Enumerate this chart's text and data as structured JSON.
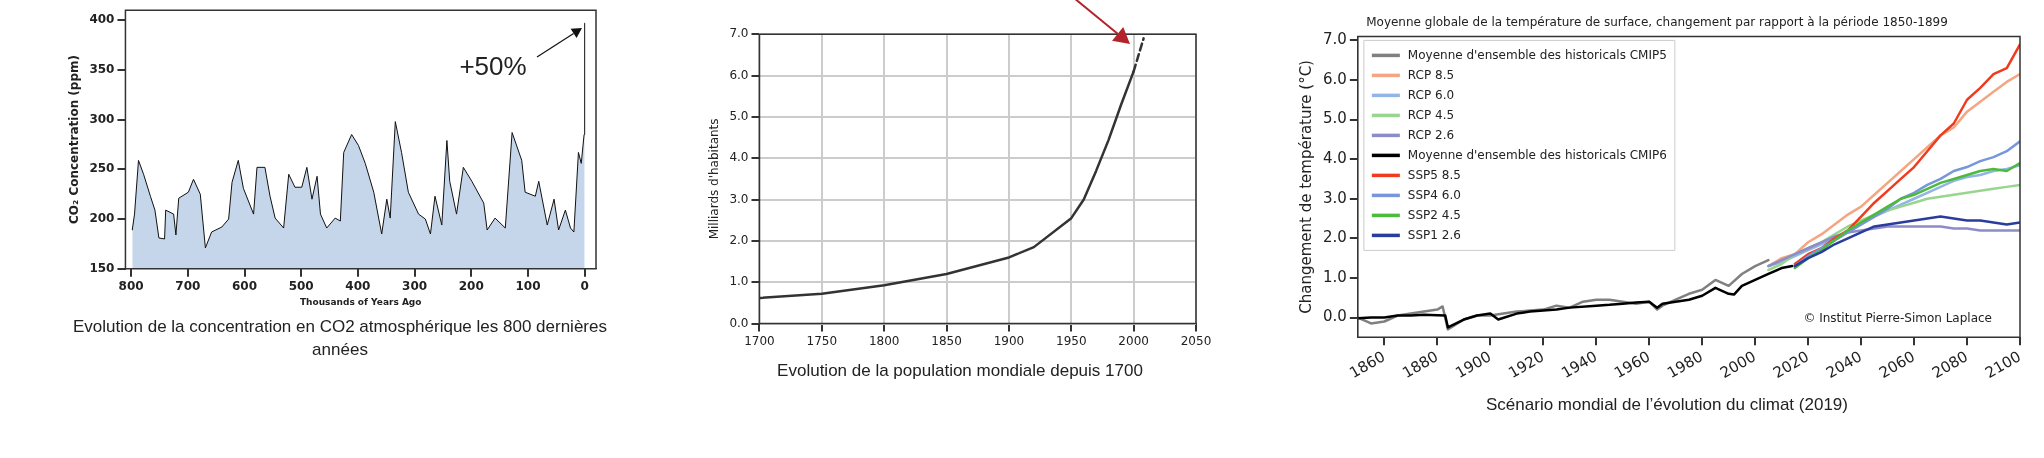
{
  "chart_data": [
    {
      "type": "area",
      "ylabel": "CO₂ Concentration (ppm)",
      "xlabel": "Thousands of Years Ago",
      "x": [
        798,
        794,
        787,
        778,
        766,
        758,
        751,
        741,
        739,
        725,
        721,
        716,
        699,
        690,
        678,
        669,
        658,
        640,
        628,
        622,
        611,
        602,
        584,
        578,
        564,
        555,
        546,
        531,
        522,
        511,
        499,
        490,
        481,
        472,
        466,
        455,
        440,
        431,
        425,
        411,
        399,
        387,
        372,
        358,
        349,
        343,
        334,
        323,
        311,
        293,
        281,
        272,
        264,
        252,
        243,
        238,
        226,
        214,
        199,
        178,
        172,
        158,
        140,
        128,
        111,
        105,
        87,
        81,
        66,
        54,
        46,
        34,
        25,
        19,
        11,
        6,
        1,
        0
      ],
      "values": [
        189,
        205,
        259,
        245,
        223,
        209,
        181,
        180,
        209,
        205,
        184,
        221,
        227,
        240,
        225,
        171,
        187,
        192,
        200,
        237,
        259,
        231,
        205,
        252,
        252,
        223,
        201,
        191,
        245,
        232,
        232,
        252,
        220,
        243,
        205,
        191,
        201,
        198,
        267,
        285,
        274,
        256,
        227,
        185,
        220,
        201,
        298,
        267,
        227,
        205,
        200,
        185,
        223,
        194,
        279,
        238,
        205,
        252,
        238,
        216,
        189,
        201,
        191,
        287,
        259,
        227,
        223,
        238,
        194,
        220,
        189,
        209,
        191,
        187,
        267,
        256,
        285,
        397
      ],
      "color": "#c5d6ea",
      "xlim": [
        810,
        -20
      ],
      "xticks": [
        800,
        700,
        600,
        500,
        400,
        300,
        200,
        100,
        0
      ],
      "ylim": [
        150,
        410
      ],
      "yticks": [
        150,
        200,
        250,
        300,
        350,
        400
      ],
      "annotations": [
        {
          "text": "+50%",
          "x": 0,
          "y": 397
        },
        "Evolution de la concentration en CO2 atmosphérique les 800 dernières années"
      ]
    },
    {
      "type": "line",
      "ylabel": "Milliards d'habitants",
      "series": [
        {
          "color": "#333333",
          "x": [
            1700,
            1750,
            1800,
            1850,
            1900,
            1920,
            1950,
            1960,
            1970,
            1980,
            1990,
            2000
          ],
          "values": [
            0.62,
            0.72,
            0.93,
            1.2,
            1.6,
            1.85,
            2.55,
            3.0,
            3.7,
            4.45,
            5.3,
            6.1
          ]
        },
        {
          "color": "#333333",
          "line_style": "dashed",
          "x": [
            2000,
            2008
          ],
          "values": [
            6.1,
            6.9
          ]
        }
      ],
      "xlim": [
        1700,
        2050
      ],
      "xticks": [
        1700,
        1750,
        1800,
        1850,
        1900,
        1950,
        2000,
        2050
      ],
      "ylim": [
        0,
        7
      ],
      "yticks": [
        {
          "value": 0,
          "label": "0.0"
        },
        {
          "value": 1,
          "label": "1.0"
        },
        {
          "value": 2,
          "label": "2.0"
        },
        {
          "value": 3,
          "label": "3.0"
        },
        {
          "value": 4,
          "label": "4.0"
        },
        {
          "value": 5,
          "label": "5.0"
        },
        {
          "value": 6,
          "label": "6.0"
        },
        {
          "value": 7,
          "label": "7.0"
        }
      ],
      "grid": true,
      "annotations": [
        "Evolution de la population mondiale depuis 1700"
      ]
    },
    {
      "type": "line",
      "title": "Moyenne globale de la température de surface, changement par rapport à la période 1850-1899",
      "ylabel": "Changement de température (°C)",
      "series": [
        {
          "name": "Moyenne d'ensemble des historicals CMIP5",
          "color": "#808080",
          "x": [
            1850,
            1855,
            1860,
            1865,
            1870,
            1875,
            1880,
            1882,
            1884,
            1890,
            1895,
            1900,
            1905,
            1910,
            1920,
            1925,
            1930,
            1935,
            1940,
            1945,
            1950,
            1955,
            1960,
            1963,
            1965,
            1970,
            1975,
            1980,
            1985,
            1990,
            1995,
            2000,
            2005
          ],
          "values": [
            0.0,
            -0.15,
            -0.1,
            0.05,
            0.1,
            0.15,
            0.2,
            0.28,
            -0.3,
            -0.05,
            0.05,
            0.05,
            0.1,
            0.15,
            0.2,
            0.3,
            0.25,
            0.4,
            0.45,
            0.45,
            0.4,
            0.35,
            0.4,
            0.2,
            0.3,
            0.45,
            0.6,
            0.7,
            0.95,
            0.8,
            1.1,
            1.3,
            1.45
          ]
        },
        {
          "name": "RCP 8.5",
          "color": "#f4a582",
          "x": [
            2005,
            2010,
            2015,
            2020,
            2025,
            2030,
            2035,
            2040,
            2045,
            2050,
            2055,
            2060,
            2065,
            2070,
            2075,
            2080,
            2085,
            2090,
            2095,
            2100
          ],
          "values": [
            1.3,
            1.5,
            1.6,
            1.9,
            2.1,
            2.35,
            2.6,
            2.8,
            3.1,
            3.4,
            3.7,
            4.0,
            4.3,
            4.6,
            4.8,
            5.2,
            5.45,
            5.7,
            5.95,
            6.15
          ]
        },
        {
          "name": "RCP 6.0",
          "color": "#92b4e6",
          "x": [
            2005,
            2010,
            2015,
            2020,
            2025,
            2030,
            2035,
            2040,
            2045,
            2050,
            2055,
            2060,
            2065,
            2070,
            2075,
            2080,
            2085,
            2090,
            2095,
            2100
          ],
          "values": [
            1.3,
            1.4,
            1.55,
            1.7,
            1.85,
            2.0,
            2.15,
            2.35,
            2.55,
            2.7,
            2.85,
            3.0,
            3.15,
            3.3,
            3.45,
            3.55,
            3.6,
            3.7,
            3.75,
            3.85
          ]
        },
        {
          "name": "RCP 4.5",
          "color": "#98d68f",
          "x": [
            2005,
            2010,
            2015,
            2020,
            2025,
            2030,
            2035,
            2040,
            2045,
            2050,
            2055,
            2060,
            2065,
            2070,
            2075,
            2080,
            2085,
            2090,
            2095,
            2100
          ],
          "values": [
            1.2,
            1.35,
            1.6,
            1.75,
            1.9,
            2.1,
            2.3,
            2.45,
            2.6,
            2.7,
            2.8,
            2.9,
            3.0,
            3.05,
            3.1,
            3.15,
            3.2,
            3.25,
            3.3,
            3.35
          ]
        },
        {
          "name": "RCP 2.6",
          "color": "#8c8cc8",
          "x": [
            2005,
            2010,
            2015,
            2020,
            2025,
            2030,
            2035,
            2040,
            2045,
            2050,
            2055,
            2060,
            2065,
            2070,
            2075,
            2080,
            2085,
            2090,
            2095,
            2100
          ],
          "values": [
            1.3,
            1.45,
            1.6,
            1.75,
            1.9,
            2.05,
            2.15,
            2.2,
            2.25,
            2.3,
            2.3,
            2.3,
            2.3,
            2.3,
            2.25,
            2.25,
            2.2,
            2.2,
            2.2,
            2.2
          ]
        },
        {
          "name": "Moyenne d'ensemble des historicals CMIP6",
          "color": "#000000",
          "x": [
            1850,
            1855,
            1860,
            1865,
            1870,
            1875,
            1880,
            1883,
            1884,
            1890,
            1895,
            1900,
            1903,
            1910,
            1915,
            1920,
            1925,
            1930,
            1940,
            1945,
            1950,
            1955,
            1960,
            1963,
            1965,
            1970,
            1975,
            1980,
            1985,
            1990,
            1992,
            1995,
            2000,
            2005,
            2010,
            2014
          ],
          "values": [
            -0.02,
            0.0,
            0.0,
            0.05,
            0.05,
            0.07,
            0.06,
            0.05,
            -0.25,
            -0.05,
            0.05,
            0.1,
            -0.05,
            0.1,
            0.15,
            0.18,
            0.2,
            0.25,
            0.3,
            0.32,
            0.35,
            0.38,
            0.4,
            0.25,
            0.35,
            0.4,
            0.45,
            0.55,
            0.75,
            0.6,
            0.58,
            0.8,
            0.95,
            1.1,
            1.25,
            1.3
          ]
        },
        {
          "name": "SSP5 8.5",
          "color": "#f03c1e",
          "x": [
            2015,
            2020,
            2025,
            2030,
            2035,
            2040,
            2045,
            2050,
            2055,
            2060,
            2065,
            2070,
            2075,
            2080,
            2085,
            2090,
            2095,
            2100
          ],
          "values": [
            1.35,
            1.6,
            1.75,
            2.0,
            2.2,
            2.55,
            2.9,
            3.2,
            3.5,
            3.8,
            4.2,
            4.6,
            4.9,
            5.5,
            5.8,
            6.15,
            6.3,
            6.9
          ]
        },
        {
          "name": "SSP4 6.0",
          "color": "#7896dc",
          "x": [
            2015,
            2020,
            2025,
            2030,
            2035,
            2040,
            2045,
            2050,
            2055,
            2060,
            2065,
            2070,
            2075,
            2080,
            2085,
            2090,
            2095,
            2100
          ],
          "values": [
            1.3,
            1.55,
            1.75,
            1.95,
            2.15,
            2.35,
            2.55,
            2.75,
            3.0,
            3.15,
            3.35,
            3.5,
            3.7,
            3.8,
            3.95,
            4.05,
            4.2,
            4.45
          ]
        },
        {
          "name": "SSP2 4.5",
          "color": "#4cbb3c",
          "x": [
            2015,
            2020,
            2025,
            2030,
            2035,
            2040,
            2045,
            2050,
            2055,
            2060,
            2065,
            2070,
            2075,
            2080,
            2085,
            2090,
            2095,
            2100
          ],
          "values": [
            1.25,
            1.5,
            1.7,
            1.95,
            2.2,
            2.4,
            2.6,
            2.8,
            3.0,
            3.1,
            3.25,
            3.4,
            3.5,
            3.6,
            3.7,
            3.75,
            3.7,
            3.9
          ]
        },
        {
          "name": "SSP1 2.6",
          "color": "#2a3d9c",
          "x": [
            2015,
            2020,
            2025,
            2030,
            2035,
            2040,
            2045,
            2050,
            2055,
            2060,
            2065,
            2070,
            2075,
            2080,
            2085,
            2090,
            2095,
            2100
          ],
          "values": [
            1.3,
            1.5,
            1.65,
            1.85,
            2.0,
            2.15,
            2.3,
            2.35,
            2.4,
            2.45,
            2.5,
            2.55,
            2.5,
            2.45,
            2.45,
            2.4,
            2.35,
            2.4
          ]
        }
      ],
      "xlim": [
        1850,
        2100
      ],
      "xticks": [
        1860,
        1880,
        1900,
        1920,
        1940,
        1960,
        1980,
        2000,
        2020,
        2040,
        2060,
        2080,
        2100
      ],
      "ylim": [
        -0.5,
        7.1
      ],
      "yticks": [
        {
          "value": 0,
          "label": "0.0"
        },
        {
          "value": 1,
          "label": "1.0"
        },
        {
          "value": 2,
          "label": "2.0"
        },
        {
          "value": 3,
          "label": "3.0"
        },
        {
          "value": 4,
          "label": "4.0"
        },
        {
          "value": 5,
          "label": "5.0"
        },
        {
          "value": 6,
          "label": "6.0"
        },
        {
          "value": 7,
          "label": "7.0"
        }
      ],
      "legend": "top left",
      "annotations": [
        "© Institut Pierre-Simon Laplace",
        "Scénario mondial de l’évolution du climat (2019)"
      ]
    }
  ]
}
